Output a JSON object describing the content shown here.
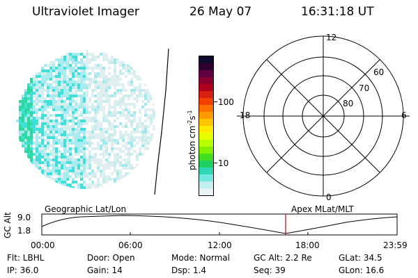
{
  "header": {
    "instrument": "Ultraviolet Imager",
    "date": "26 May 07",
    "time": "16:31:18 UT"
  },
  "colorbar": {
    "unit_label": "photon cm",
    "unit_sup1": "-2",
    "unit_mid": "s",
    "unit_sup2": "-1",
    "tick_100": "100",
    "tick_10": "10",
    "colors": [
      "#0c0c2c",
      "#300030",
      "#600040",
      "#8a0030",
      "#b00020",
      "#d82010",
      "#f04000",
      "#ff7000",
      "#ff9a00",
      "#ffc400",
      "#ffe800",
      "#e8ff00",
      "#b8ff00",
      "#80f000",
      "#40e020",
      "#20d060",
      "#30d8b8",
      "#70e8e0",
      "#c0f0f0",
      "#e8f4f4"
    ]
  },
  "polar": {
    "labels": {
      "top": "12",
      "bottom": "0",
      "left": "18",
      "right": "6"
    },
    "lat_labels": [
      "60",
      "70",
      "80"
    ]
  },
  "timeline": {
    "left_label": "Geographic Lat/Lon",
    "right_label": "Apex MLat/MLT",
    "axis_title": "GC Alt",
    "y_max": "9.0",
    "y_min": "1.8",
    "ticks": [
      "00:00",
      "06:00",
      "12:00",
      "18:00",
      "23:59"
    ],
    "marker_color": "#c00000"
  },
  "info": {
    "flt": "Flt: LBHL",
    "ip": "IP: 36.0",
    "door": "Door: Open",
    "gain": "Gain: 14",
    "mode": "Mode: Normal",
    "dsp": "Dsp:    1.4",
    "gcalt": "GC Alt: 2.2 Re",
    "seq": "Seq: 39",
    "glat": "GLat:   34.5",
    "glon": "GLon:   16.6"
  }
}
